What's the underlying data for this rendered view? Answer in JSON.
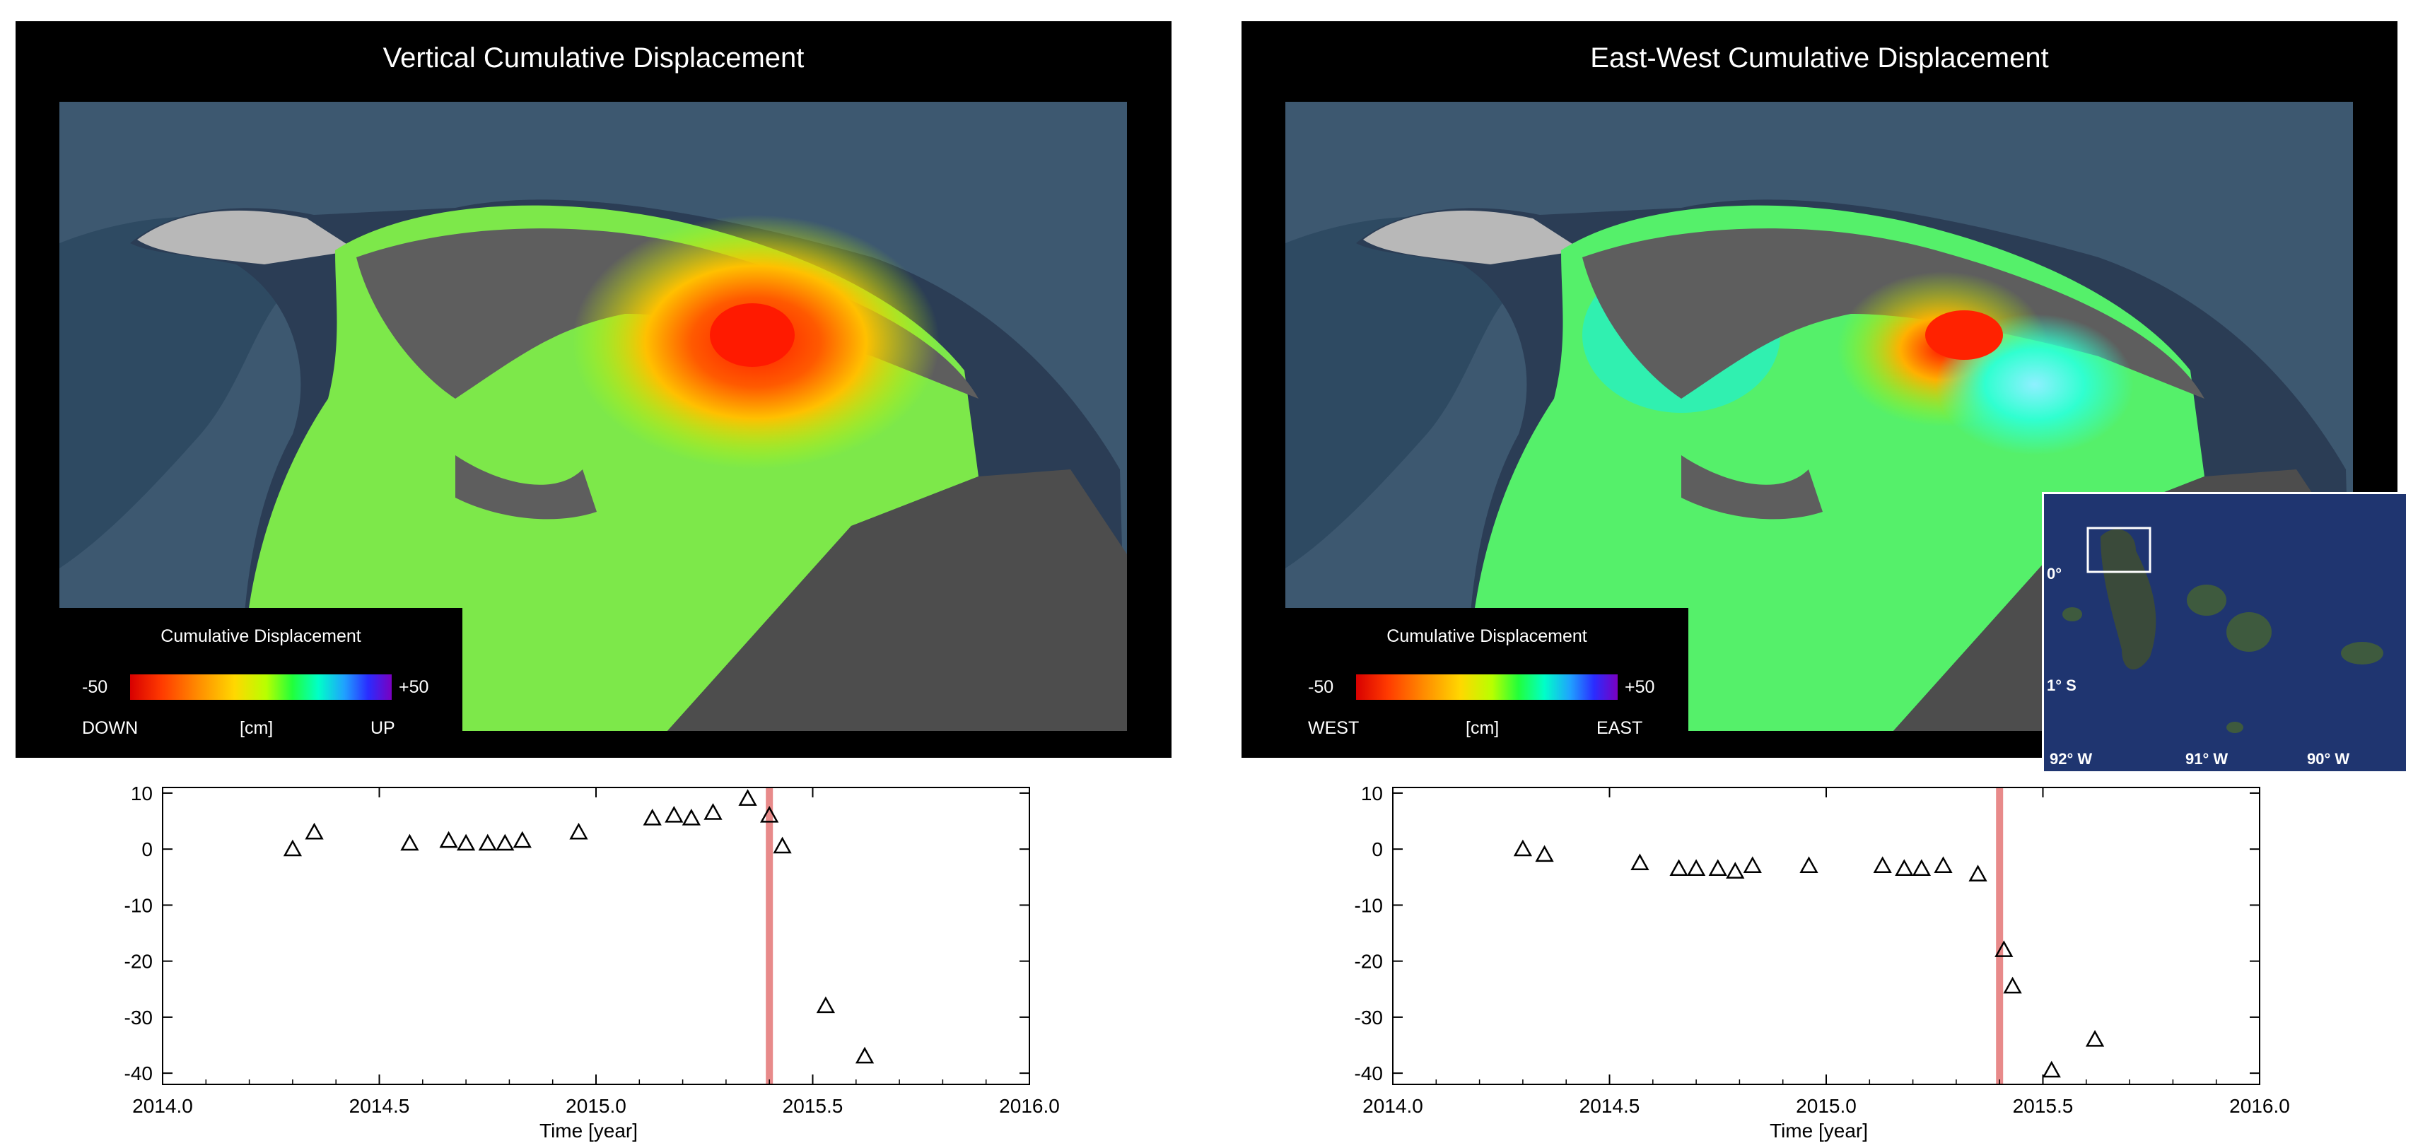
{
  "panels": [
    {
      "title": "Vertical Cumulative Displacement",
      "legend": {
        "title": "Cumulative Displacement",
        "min": "-50",
        "max": "+50",
        "low_label": "DOWN",
        "unit": "[cm]",
        "high_label": "UP"
      }
    },
    {
      "title": "East-West Cumulative Displacement",
      "legend": {
        "title": "Cumulative Displacement",
        "min": "-50",
        "max": "+50",
        "low_label": "WEST",
        "unit": "[cm]",
        "high_label": "EAST"
      }
    }
  ],
  "inset_map": {
    "lat_labels": [
      "0°",
      "1° S"
    ],
    "lon_labels": [
      "92° W",
      "91° W",
      "90° W"
    ]
  },
  "colors": {
    "marker_line": "#e88a8a",
    "axis": "#000000",
    "panel_bg": "#000000"
  },
  "chart_data": [
    {
      "type": "scatter",
      "xlabel": "Time [year]",
      "ylabel": "",
      "xlim": [
        2014.0,
        2016.0
      ],
      "ylim": [
        -42,
        11
      ],
      "x_ticks": [
        "2014.0",
        "2014.5",
        "2015.0",
        "2015.5",
        "2016.0"
      ],
      "y_ticks": [
        "10",
        "0",
        "-10",
        "-20",
        "-30",
        "-40"
      ],
      "marker": "open-triangle",
      "vertical_line_x": 2015.4,
      "points": [
        [
          2014.3,
          0
        ],
        [
          2014.35,
          3
        ],
        [
          2014.57,
          1
        ],
        [
          2014.66,
          1.5
        ],
        [
          2014.7,
          1
        ],
        [
          2014.75,
          1
        ],
        [
          2014.79,
          1
        ],
        [
          2014.83,
          1.5
        ],
        [
          2014.96,
          3
        ],
        [
          2015.13,
          5.5
        ],
        [
          2015.18,
          6
        ],
        [
          2015.22,
          5.5
        ],
        [
          2015.27,
          6.5
        ],
        [
          2015.35,
          9
        ],
        [
          2015.4,
          6
        ],
        [
          2015.43,
          0.5
        ],
        [
          2015.53,
          -28
        ],
        [
          2015.62,
          -37
        ]
      ]
    },
    {
      "type": "scatter",
      "xlabel": "Time [year]",
      "ylabel": "",
      "xlim": [
        2014.0,
        2016.0
      ],
      "ylim": [
        -42,
        11
      ],
      "x_ticks": [
        "2014.0",
        "2014.5",
        "2015.0",
        "2015.5",
        "2016.0"
      ],
      "y_ticks": [
        "10",
        "0",
        "-10",
        "-20",
        "-30",
        "-40"
      ],
      "marker": "open-triangle",
      "vertical_line_x": 2015.4,
      "points": [
        [
          2014.3,
          0
        ],
        [
          2014.35,
          -1
        ],
        [
          2014.57,
          -2.5
        ],
        [
          2014.66,
          -3.5
        ],
        [
          2014.7,
          -3.5
        ],
        [
          2014.75,
          -3.5
        ],
        [
          2014.79,
          -4
        ],
        [
          2014.83,
          -3
        ],
        [
          2014.96,
          -3
        ],
        [
          2015.13,
          -3
        ],
        [
          2015.18,
          -3.5
        ],
        [
          2015.22,
          -3.5
        ],
        [
          2015.27,
          -3
        ],
        [
          2015.35,
          -4.5
        ],
        [
          2015.41,
          -18
        ],
        [
          2015.43,
          -24.5
        ],
        [
          2015.52,
          -39.5
        ],
        [
          2015.62,
          -34
        ]
      ]
    }
  ]
}
